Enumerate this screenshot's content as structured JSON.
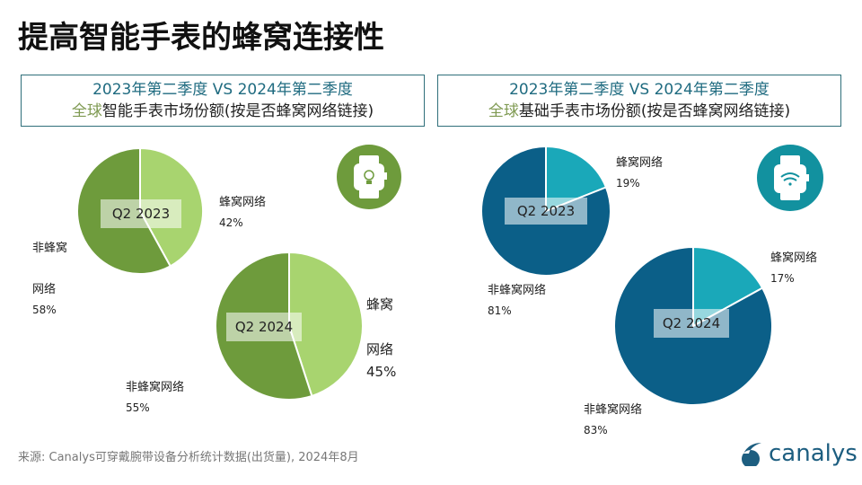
{
  "title": "提高智能手表的蜂窝连接性",
  "left_panel": {
    "line1": "2023年第二季度 VS 2024年第二季度",
    "highlight": "全球",
    "line2": "智能手表市场份额(按是否蜂窝网络链接)",
    "icon": "smartwatch-lightbulb-icon"
  },
  "right_panel": {
    "line1": "2023年第二季度 VS 2024年第二季度",
    "highlight": "全球",
    "line2": "基础手表市场份额(按是否蜂窝网络链接)",
    "icon": "watch-wifi-icon"
  },
  "colors": {
    "smart_cellular": "#a8d46f",
    "smart_non": "#6e9b3c",
    "basic_cellular": "#1aa8b9",
    "basic_non": "#0b5f88"
  },
  "chart_data": [
    {
      "type": "pie",
      "panel": "智能手表",
      "label": "Q2 2023",
      "slices": [
        {
          "name": "蜂窝网络",
          "value": 42,
          "text": "42%"
        },
        {
          "name": "非蜂窝网络",
          "value": 58,
          "text": "58%"
        }
      ]
    },
    {
      "type": "pie",
      "panel": "智能手表",
      "label": "Q2 2024",
      "slices": [
        {
          "name": "蜂窝网络",
          "value": 45,
          "text": "45%"
        },
        {
          "name": "非蜂窝网络",
          "value": 55,
          "text": "55%"
        }
      ]
    },
    {
      "type": "pie",
      "panel": "基础手表",
      "label": "Q2 2023",
      "slices": [
        {
          "name": "蜂窝网络",
          "value": 19,
          "text": "19%"
        },
        {
          "name": "非蜂窝网络",
          "value": 81,
          "text": "81%"
        }
      ]
    },
    {
      "type": "pie",
      "panel": "基础手表",
      "label": "Q2 2024",
      "slices": [
        {
          "name": "蜂窝网络",
          "value": 17,
          "text": "17%"
        },
        {
          "name": "非蜂窝网络",
          "value": 83,
          "text": "83%"
        }
      ]
    }
  ],
  "source": "来源: Canalys可穿戴腕带设备分析统计数据(出货量), 2024年8月",
  "logo": "canalys"
}
